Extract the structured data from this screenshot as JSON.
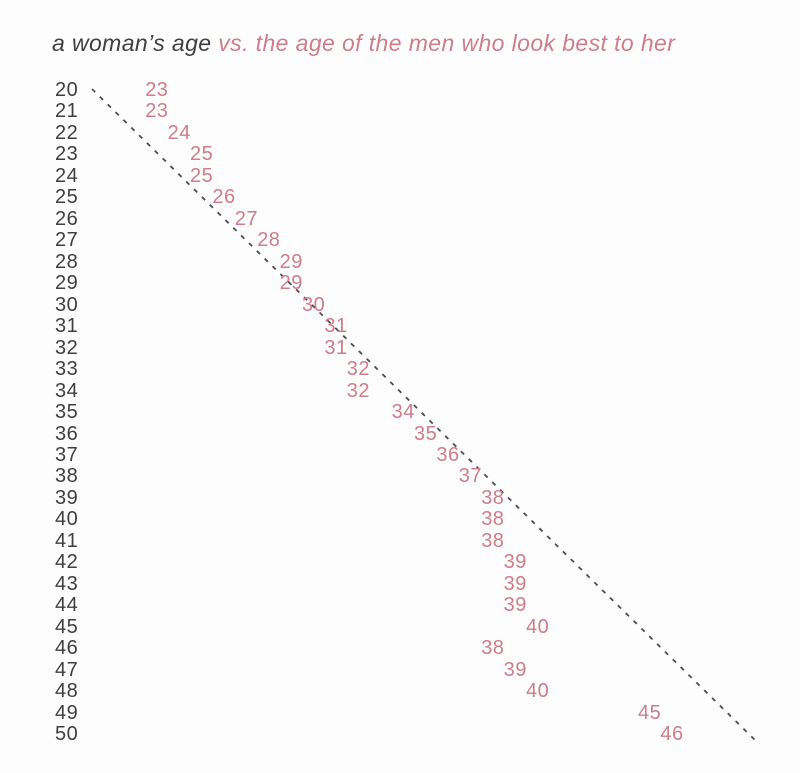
{
  "title": {
    "primary": "a woman’s age ",
    "accent": "vs. the age of the men who look best to her"
  },
  "colors": {
    "accent_pink": "#cf7d89",
    "text_dark": "#3f3f3f",
    "line_gray": "#4d4d4d",
    "background": "#fdfdfd"
  },
  "chart_data": {
    "type": "scatter",
    "title": "a woman’s age vs. the age of the men who look best to her",
    "xlabel": "age of the men who look best to her",
    "ylabel": "a woman’s age",
    "x_range": [
      20,
      50
    ],
    "y_range": [
      20,
      50
    ],
    "grid": false,
    "legend": "none",
    "annotations": {
      "diagonal_line": "dashed x = y reference line from age 20 to age 50"
    },
    "rows": [
      {
        "woman_age": 20,
        "best_age": 23
      },
      {
        "woman_age": 21,
        "best_age": 23
      },
      {
        "woman_age": 22,
        "best_age": 24
      },
      {
        "woman_age": 23,
        "best_age": 25
      },
      {
        "woman_age": 24,
        "best_age": 25
      },
      {
        "woman_age": 25,
        "best_age": 26
      },
      {
        "woman_age": 26,
        "best_age": 27
      },
      {
        "woman_age": 27,
        "best_age": 28
      },
      {
        "woman_age": 28,
        "best_age": 29
      },
      {
        "woman_age": 29,
        "best_age": 29
      },
      {
        "woman_age": 30,
        "best_age": 30
      },
      {
        "woman_age": 31,
        "best_age": 31
      },
      {
        "woman_age": 32,
        "best_age": 31
      },
      {
        "woman_age": 33,
        "best_age": 32
      },
      {
        "woman_age": 34,
        "best_age": 32
      },
      {
        "woman_age": 35,
        "best_age": 34
      },
      {
        "woman_age": 36,
        "best_age": 35
      },
      {
        "woman_age": 37,
        "best_age": 36
      },
      {
        "woman_age": 38,
        "best_age": 37
      },
      {
        "woman_age": 39,
        "best_age": 38
      },
      {
        "woman_age": 40,
        "best_age": 38
      },
      {
        "woman_age": 41,
        "best_age": 38
      },
      {
        "woman_age": 42,
        "best_age": 39
      },
      {
        "woman_age": 43,
        "best_age": 39
      },
      {
        "woman_age": 44,
        "best_age": 39
      },
      {
        "woman_age": 45,
        "best_age": 40
      },
      {
        "woman_age": 46,
        "best_age": 38
      },
      {
        "woman_age": 47,
        "best_age": 39
      },
      {
        "woman_age": 48,
        "best_age": 40
      },
      {
        "woman_age": 49,
        "best_age": 45
      },
      {
        "woman_age": 50,
        "best_age": 46
      }
    ]
  }
}
